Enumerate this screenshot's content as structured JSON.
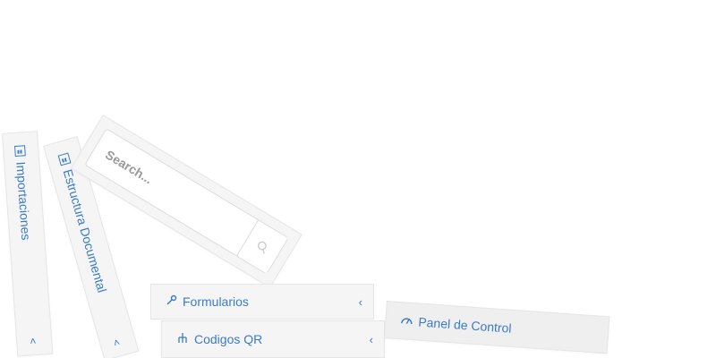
{
  "sidebar": {
    "importaciones": {
      "label": "Importaciones",
      "icon": "bar-chart-icon",
      "chevron": "˄"
    },
    "estructura": {
      "label": "Estructura Documental",
      "icon": "document-structure-icon",
      "chevron": "˄"
    }
  },
  "search": {
    "placeholder": "Search...",
    "button_icon": "search-icon"
  },
  "menu": {
    "formularios": {
      "label": "Formularios",
      "icon": "wrench-icon",
      "chevron": "‹"
    },
    "codigos": {
      "label": "Codigos QR",
      "icon": "tree-icon",
      "chevron": "‹"
    },
    "panel_control": {
      "label": "Panel de Control",
      "icon": "dashboard-icon"
    }
  },
  "colors": {
    "accent": "#3a7bc8",
    "panel_bg": "#f5f5f5",
    "border": "#e6e6e6"
  }
}
